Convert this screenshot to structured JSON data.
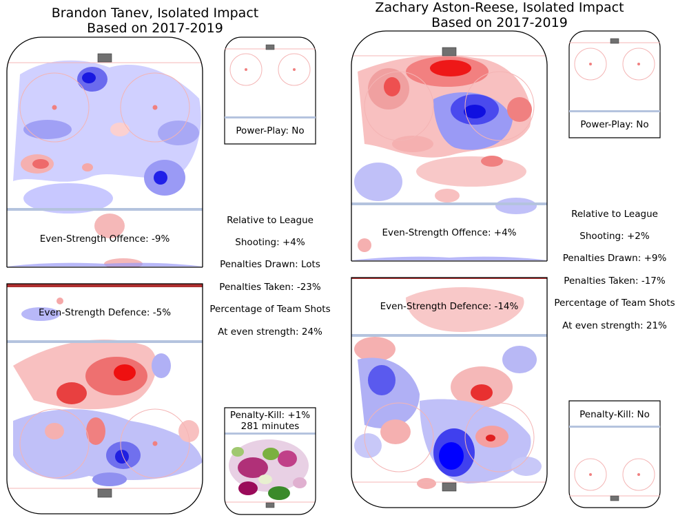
{
  "players": [
    {
      "name": "Brandon Tanev",
      "title_line1": "Brandon Tanev, Isolated Impact",
      "title_line2": "Based on 2017-2019",
      "even_strength_offence": "Even-Strength Offence: -9%",
      "even_strength_defence": "Even-Strength Defence: -5%",
      "power_play": "Power-Play: No",
      "penalty_kill_line1": "Penalty-Kill: +1%",
      "penalty_kill_line2": "281 minutes",
      "stats": {
        "header": "Relative to League",
        "shooting": "Shooting: +4%",
        "penalties_drawn": "Penalties Drawn: Lots",
        "penalties_taken": "Penalties Taken: -23%",
        "team_shots_label": "Percentage of Team Shots",
        "even_strength_share": "At even strength: 24%"
      }
    },
    {
      "name": "Zachary Aston-Reese",
      "title_line1": "Zachary Aston-Reese, Isolated Impact",
      "title_line2": "Based on 2017-2019",
      "even_strength_offence": "Even-Strength Offence: +4%",
      "even_strength_defence": "Even-Strength Defence: -14%",
      "power_play": "Power-Play: No",
      "penalty_kill": "Penalty-Kill: No",
      "stats": {
        "header": "Relative to League",
        "shooting": "Shooting: +2%",
        "penalties_drawn": "Penalties Drawn: +9%",
        "penalties_taken": "Penalties Taken: -17%",
        "team_shots_label": "Percentage of Team Shots",
        "even_strength_share": "At even strength: 21%"
      }
    }
  ],
  "chart_data": {
    "type": "heatmap",
    "description_values": {
      "tanev": {
        "es_offence_pct": -9,
        "es_defence_pct": -5,
        "shooting_pct": 4,
        "penalties_taken_pct": -23,
        "team_shot_share_pct": 24,
        "penalty_kill_pct": 1,
        "penalty_kill_minutes": 281
      },
      "aston_reese": {
        "es_offence_pct": 4,
        "es_defence_pct": -14,
        "shooting_pct": 2,
        "penalties_drawn_pct": 9,
        "penalties_taken_pct": -17,
        "team_shot_share_pct": 21
      }
    }
  },
  "colors": {
    "more_shots": "#ff0000",
    "fewer_shots": "#0000ff",
    "pk_positive": "#2a8a1a",
    "pk_negative": "#a0005a",
    "rink_line_blue": "#b4c3de",
    "rink_line_red": "#f4b4b4"
  }
}
